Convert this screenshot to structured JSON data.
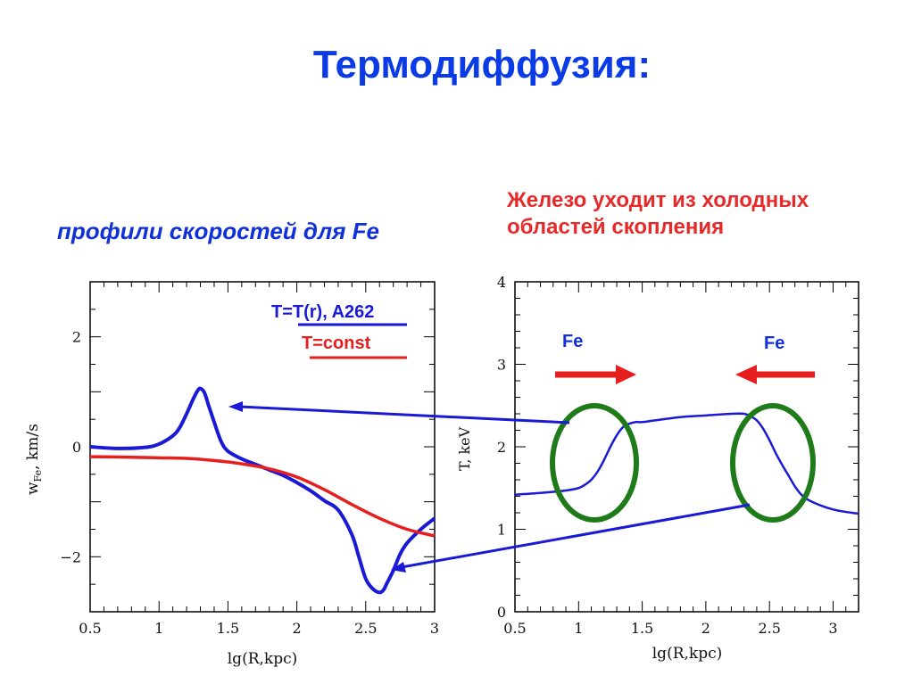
{
  "slide": {
    "title": "Термодиффузия:",
    "left_caption": "профили скоростей для Fe",
    "right_caption_line1": "Железо уходит из холодных",
    "right_caption_line2": "областей скопления"
  },
  "colors": {
    "title": "#0a3be6",
    "blue_curve": "#1a1ad6",
    "red_curve": "#e61e1e",
    "ellipse": "#1f7a1a",
    "arrow_red": "#e61e1e",
    "arrow_blue": "#1a1ad6"
  },
  "annotations": {
    "fe_left": "Fe",
    "fe_right": "Fe"
  },
  "chart_data": [
    {
      "type": "line",
      "xlabel": "lg(R,kpc)",
      "ylabel_main": "w",
      "ylabel_sub": "Fe",
      "ylabel_rest": ", km/s",
      "xlim": [
        0.5,
        3.0
      ],
      "ylim": [
        -3.0,
        3.0
      ],
      "x_ticks": [
        "0.5",
        "1",
        "1.5",
        "2",
        "2.5",
        "3"
      ],
      "x_tick_values": [
        0.5,
        1.0,
        1.5,
        2.0,
        2.5,
        3.0
      ],
      "y_ticks": [
        "−2",
        "0",
        "2"
      ],
      "y_tick_values": [
        -2,
        0,
        2
      ],
      "legend": [
        {
          "label": "T=T(r), A262",
          "color": "#1a1ad6"
        },
        {
          "label": "T=const",
          "color": "#e61e1e"
        }
      ],
      "series": [
        {
          "name": "T=T(r), A262",
          "color": "#1a1ad6",
          "x": [
            0.5,
            0.7,
            0.9,
            1.0,
            1.1,
            1.15,
            1.2,
            1.25,
            1.28,
            1.3,
            1.33,
            1.36,
            1.4,
            1.45,
            1.5,
            1.6,
            1.7,
            1.8,
            1.9,
            2.0,
            2.1,
            2.2,
            2.3,
            2.4,
            2.45,
            2.5,
            2.55,
            2.6,
            2.63,
            2.65,
            2.7,
            2.75,
            2.8,
            2.9,
            3.0
          ],
          "y": [
            0.0,
            -0.03,
            -0.01,
            0.05,
            0.2,
            0.35,
            0.6,
            0.88,
            1.02,
            1.06,
            0.98,
            0.75,
            0.45,
            0.1,
            -0.08,
            -0.22,
            -0.32,
            -0.42,
            -0.52,
            -0.65,
            -0.8,
            -0.98,
            -1.15,
            -1.6,
            -2.0,
            -2.4,
            -2.58,
            -2.65,
            -2.6,
            -2.5,
            -2.25,
            -1.95,
            -1.75,
            -1.5,
            -1.3
          ]
        },
        {
          "name": "T=const",
          "color": "#e61e1e",
          "x": [
            0.5,
            0.8,
            1.0,
            1.2,
            1.4,
            1.6,
            1.8,
            2.0,
            2.2,
            2.4,
            2.6,
            2.8,
            3.0
          ],
          "y": [
            -0.18,
            -0.19,
            -0.2,
            -0.21,
            -0.25,
            -0.31,
            -0.4,
            -0.55,
            -0.78,
            -1.05,
            -1.3,
            -1.5,
            -1.62
          ]
        }
      ]
    },
    {
      "type": "line",
      "xlabel": "lg(R,kpc)",
      "ylabel": "T, keV",
      "xlim": [
        0.5,
        3.2
      ],
      "ylim": [
        0,
        4
      ],
      "x_ticks": [
        "0.5",
        "1",
        "1.5",
        "2",
        "2.5",
        "3"
      ],
      "x_tick_values": [
        0.5,
        1.0,
        1.5,
        2.0,
        2.5,
        3.0
      ],
      "y_ticks": [
        "0",
        "1",
        "2",
        "3",
        "4"
      ],
      "y_tick_values": [
        0,
        1,
        2,
        3,
        4
      ],
      "series": [
        {
          "color": "#1a1ad6",
          "x": [
            0.5,
            0.7,
            0.9,
            1.0,
            1.05,
            1.1,
            1.15,
            1.2,
            1.25,
            1.3,
            1.35,
            1.4,
            1.45,
            1.5,
            1.6,
            1.8,
            2.0,
            2.2,
            2.3,
            2.35,
            2.4,
            2.45,
            2.5,
            2.55,
            2.6,
            2.65,
            2.7,
            2.75,
            2.8,
            2.9,
            3.0,
            3.1,
            3.2
          ],
          "y": [
            1.42,
            1.44,
            1.47,
            1.5,
            1.54,
            1.6,
            1.7,
            1.84,
            2.0,
            2.14,
            2.24,
            2.28,
            2.3,
            2.3,
            2.32,
            2.36,
            2.38,
            2.4,
            2.4,
            2.37,
            2.32,
            2.22,
            2.08,
            1.92,
            1.78,
            1.65,
            1.52,
            1.42,
            1.36,
            1.29,
            1.24,
            1.21,
            1.19
          ]
        }
      ]
    }
  ]
}
